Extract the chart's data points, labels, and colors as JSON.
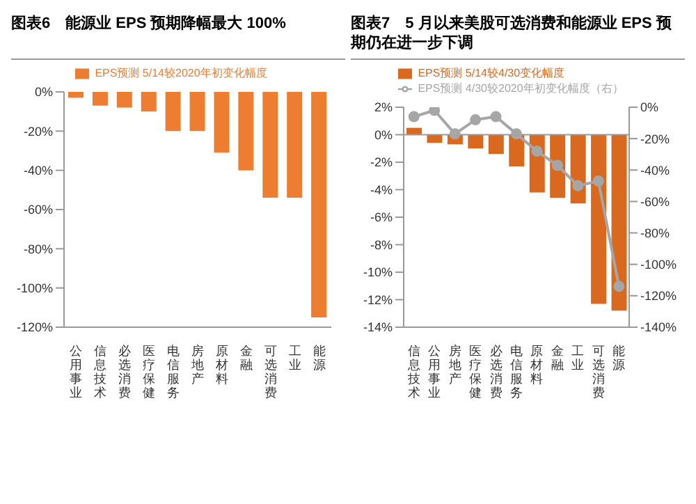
{
  "chart_data": [
    {
      "type": "bar",
      "title": "图表6　能源业 EPS 预期降幅最大 100%",
      "categories": [
        "公用事业",
        "信息技术",
        "必选消费",
        "医疗保健",
        "电信服务",
        "房地产",
        "原材料",
        "金融",
        "可选消费",
        "工业",
        "能源"
      ],
      "series": [
        {
          "name": "EPS预测 5/14较2020年初变化幅度",
          "color": "#ed7d31",
          "values": [
            -3,
            -7,
            -8,
            -10,
            -20,
            -20,
            -31,
            -40,
            -54,
            -54,
            -115
          ]
        }
      ],
      "ylim": [
        -120,
        0
      ],
      "yticks": [
        {
          "value": 0,
          "label": "0%"
        },
        {
          "value": -20,
          "label": "-20%"
        },
        {
          "value": -40,
          "label": "-40%"
        },
        {
          "value": -60,
          "label": "-60%"
        },
        {
          "value": -80,
          "label": "-80%"
        },
        {
          "value": -100,
          "label": "-100%"
        },
        {
          "value": -120,
          "label": "-120%"
        }
      ],
      "legend": "top",
      "grid": false
    },
    {
      "type": "bar",
      "title": "图表7　5 月以来美股可选消费和能源业 EPS 预期仍在进一步下调",
      "categories": [
        "信息技术",
        "公用事业",
        "房地产",
        "医疗保健",
        "必选消费",
        "电信服务",
        "原材料",
        "金融",
        "工业",
        "可选消费",
        "能源"
      ],
      "series": [
        {
          "name": "EPS预测 5/14较4/30变化幅度",
          "color": "#d9691f",
          "values": [
            0.5,
            -0.6,
            -0.7,
            -1,
            -1.4,
            -2.3,
            -4.2,
            -4.6,
            -5,
            -12.3,
            -12.8
          ]
        },
        {
          "name": "EPS预测 4/30较2020年初变化幅度（右）",
          "type": "line",
          "axis": "y2",
          "color": "#a6a6a6",
          "marker": "circle",
          "line_style": "solid",
          "values": [
            -6,
            -2,
            -17,
            -8,
            -6,
            -17,
            -28,
            -37,
            -50,
            -47,
            -114
          ]
        }
      ],
      "ylim": [
        -14,
        2
      ],
      "yticks": [
        {
          "value": 2,
          "label": "2%"
        },
        {
          "value": 0,
          "label": "0%"
        },
        {
          "value": -2,
          "label": "-2%"
        },
        {
          "value": -4,
          "label": "-4%"
        },
        {
          "value": -6,
          "label": "-6%"
        },
        {
          "value": -8,
          "label": "-8%"
        },
        {
          "value": -10,
          "label": "-10%"
        },
        {
          "value": -12,
          "label": "-12%"
        },
        {
          "value": -14,
          "label": "-14%"
        }
      ],
      "y2lim": [
        -140,
        0
      ],
      "y2ticks": [
        {
          "value": 0,
          "label": "0%"
        },
        {
          "value": -20,
          "label": "-20%"
        },
        {
          "value": -40,
          "label": "-40%"
        },
        {
          "value": -60,
          "label": "-60%"
        },
        {
          "value": -80,
          "label": "-80%"
        },
        {
          "value": -100,
          "label": "-100%"
        },
        {
          "value": -120,
          "label": "-120%"
        },
        {
          "value": -140,
          "label": "-140%"
        }
      ],
      "ref_lines": [
        {
          "axis": "y",
          "value": 0,
          "color": "#999999"
        }
      ],
      "legend": "top",
      "grid": false
    }
  ]
}
